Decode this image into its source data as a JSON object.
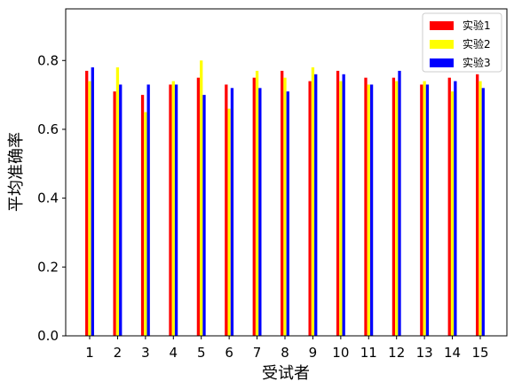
{
  "chart_data": {
    "type": "bar",
    "xlabel": "受试者",
    "ylabel": "平均准确率",
    "categories": [
      "1",
      "2",
      "3",
      "4",
      "5",
      "6",
      "7",
      "8",
      "9",
      "10",
      "11",
      "12",
      "13",
      "14",
      "15"
    ],
    "ylim": [
      0,
      0.95
    ],
    "yticks": [
      "0.0",
      "0.2",
      "0.4",
      "0.6",
      "0.8"
    ],
    "ytick_values": [
      0,
      0.2,
      0.4,
      0.6,
      0.8
    ],
    "grid": false,
    "legend_position": "top-right",
    "series": [
      {
        "name": "实验1",
        "color": "#ff0000",
        "values": [
          0.77,
          0.71,
          0.7,
          0.73,
          0.75,
          0.73,
          0.75,
          0.77,
          0.74,
          0.77,
          0.75,
          0.75,
          0.73,
          0.75,
          0.76
        ]
      },
      {
        "name": "实验2",
        "color": "#ffff00",
        "values": [
          0.74,
          0.78,
          0.65,
          0.74,
          0.8,
          0.66,
          0.77,
          0.75,
          0.78,
          0.74,
          0.73,
          0.74,
          0.74,
          0.71,
          0.74
        ]
      },
      {
        "name": "实验3",
        "color": "#0000ff",
        "values": [
          0.78,
          0.73,
          0.73,
          0.73,
          0.7,
          0.72,
          0.72,
          0.71,
          0.76,
          0.76,
          0.73,
          0.77,
          0.73,
          0.74,
          0.72
        ]
      }
    ]
  }
}
